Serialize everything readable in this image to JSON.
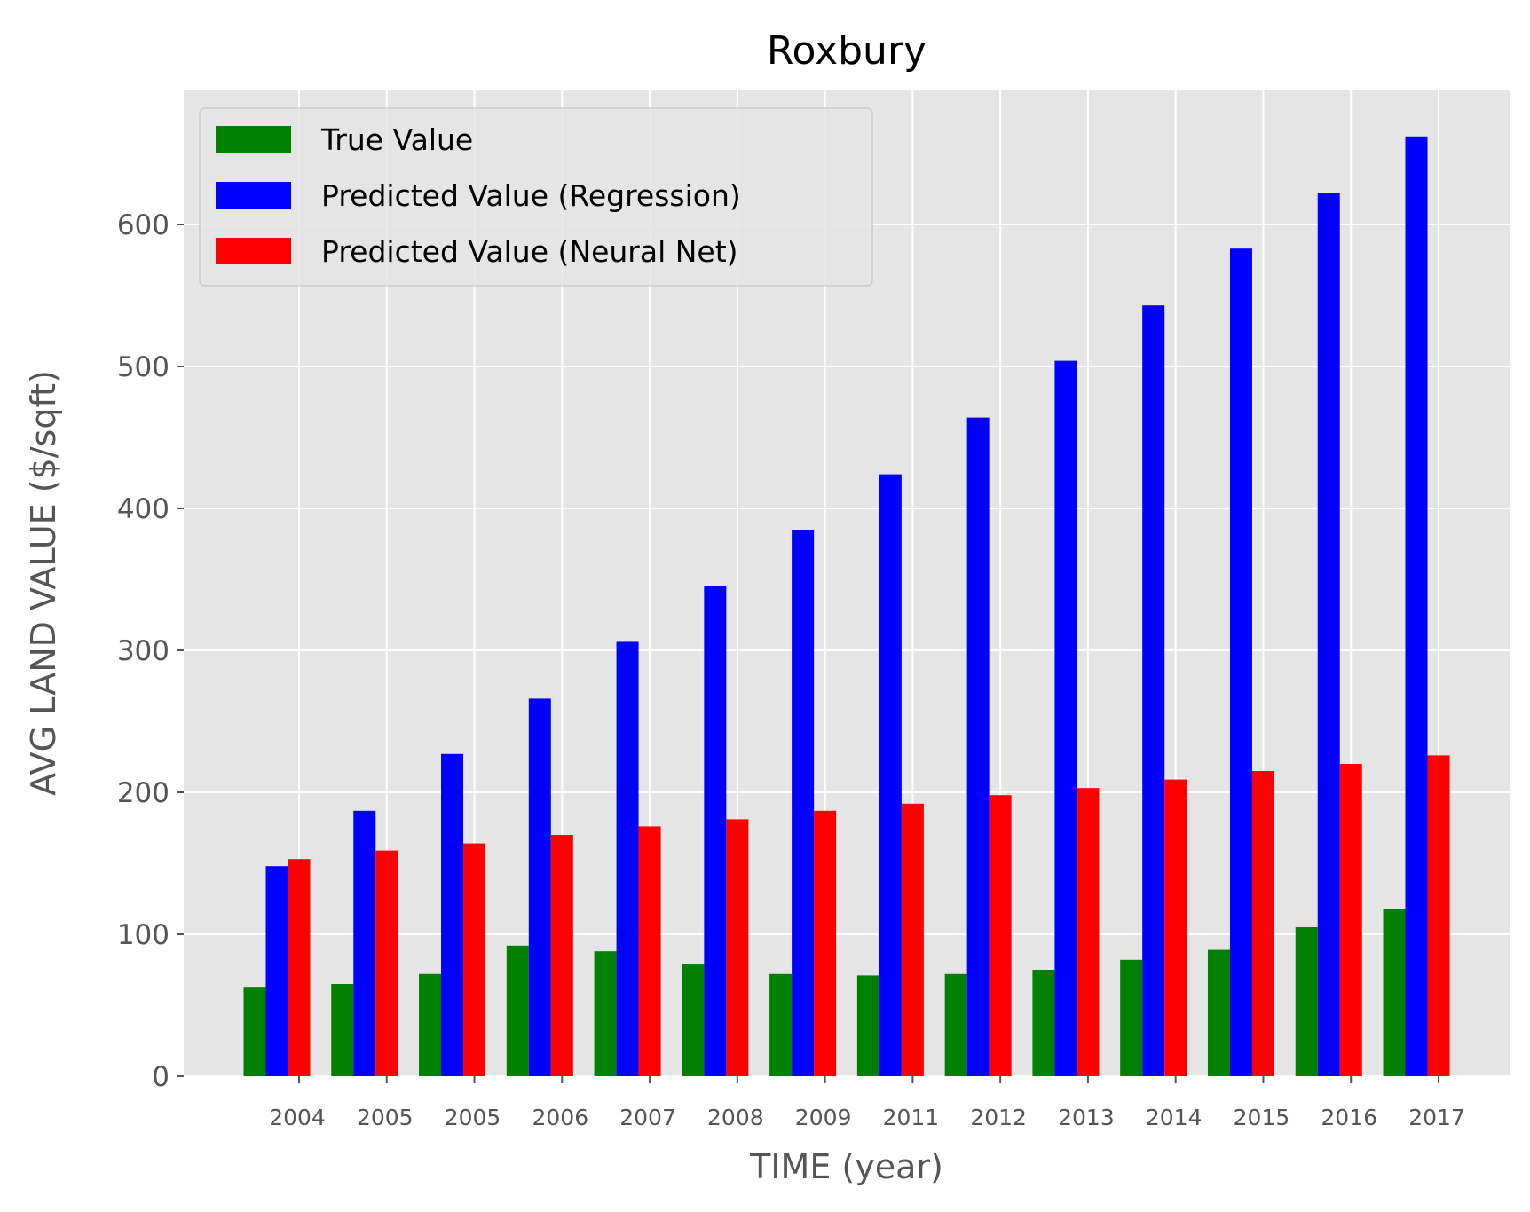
{
  "chart_data": {
    "type": "bar",
    "title": "Roxbury",
    "xlabel": "TIME (year)",
    "ylabel": "AVG LAND VALUE ($/sqft)",
    "categories": [
      "2004",
      "2005",
      "2005",
      "2006",
      "2007",
      "2008",
      "2009",
      "2011",
      "2012",
      "2013",
      "2014",
      "2015",
      "2016",
      "2017"
    ],
    "ylim": [
      0,
      695
    ],
    "yticks": [
      "0",
      "100",
      "200",
      "300",
      "400",
      "500",
      "600"
    ],
    "grid": true,
    "legend_position": "top-left",
    "series": [
      {
        "name": "True Value",
        "color": "#008000",
        "values": [
          63,
          65,
          72,
          92,
          88,
          79,
          72,
          71,
          72,
          75,
          82,
          89,
          105,
          118
        ]
      },
      {
        "name": "Predicted Value (Regression)",
        "color": "#0000ff",
        "values": [
          148,
          187,
          227,
          266,
          306,
          345,
          385,
          424,
          464,
          504,
          543,
          583,
          622,
          662
        ]
      },
      {
        "name": "Predicted Value (Neural Net)",
        "color": "#ff0000",
        "values": [
          153,
          159,
          164,
          170,
          176,
          181,
          187,
          192,
          198,
          203,
          209,
          215,
          220,
          226
        ]
      }
    ]
  }
}
